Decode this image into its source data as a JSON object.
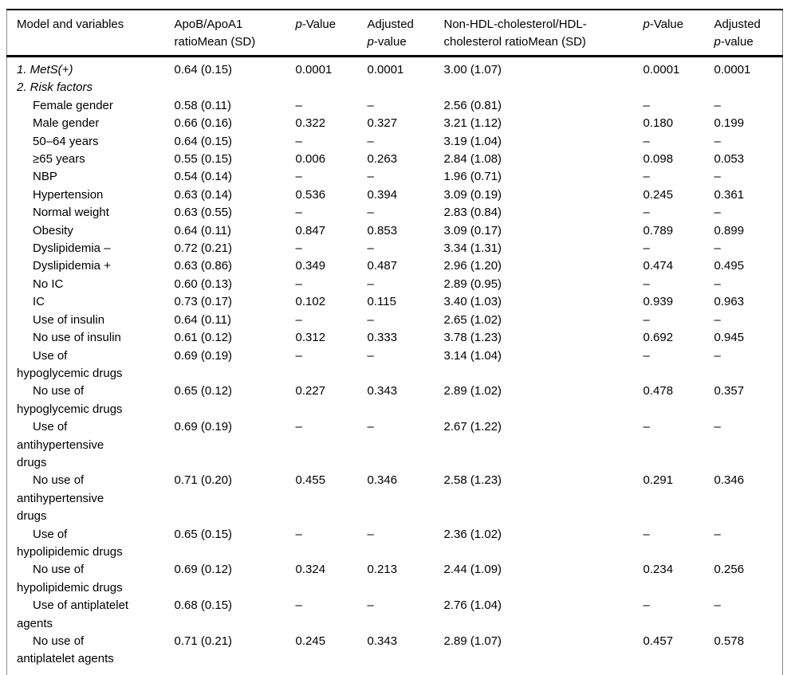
{
  "table": {
    "header": {
      "model": "Model and variables",
      "apob": "ApoB/ApoA1\nratioMean (SD)",
      "p_italic": "p",
      "p_value_rest": "-Value",
      "adjusted": "Adjusted",
      "adj_p_rest": "-value",
      "nonhdl": "Non-HDL-cholesterol/HDL-\ncholesterol ratioMean (SD)"
    },
    "missing_marker": "–",
    "rows": [
      {
        "label": "1. MetS(+)",
        "italic": true,
        "indent": false,
        "values": [
          "0.64 (0.15)",
          "0.0001",
          "0.0001",
          "3.00 (1.07)",
          "0.0001",
          "0.0001"
        ]
      },
      {
        "label": "2. Risk factors",
        "italic": true,
        "indent": false,
        "values": [
          "",
          "",
          "",
          "",
          "",
          ""
        ]
      },
      {
        "label": "Female gender",
        "italic": false,
        "indent": true,
        "values": [
          "0.58 (0.11)",
          "–",
          "–",
          "2.56 (0.81)",
          "–",
          "–"
        ]
      },
      {
        "label": "Male gender",
        "italic": false,
        "indent": true,
        "values": [
          "0.66 (0.16)",
          "0.322",
          "0.327",
          "3.21 (1.12)",
          "0.180",
          "0.199"
        ]
      },
      {
        "label": "50–64 years",
        "italic": false,
        "indent": true,
        "values": [
          "0.64 (0.15)",
          "–",
          "–",
          "3.19 (1.04)",
          "–",
          "–"
        ]
      },
      {
        "label": "≥65 years",
        "italic": false,
        "indent": true,
        "values": [
          "0.55 (0.15)",
          "0.006",
          "0.263",
          "2.84 (1.08)",
          "0.098",
          "0.053"
        ]
      },
      {
        "label": "NBP",
        "italic": false,
        "indent": true,
        "values": [
          "0.54 (0.14)",
          "–",
          "–",
          "1.96 (0.71)",
          "–",
          "–"
        ]
      },
      {
        "label": "Hypertension",
        "italic": false,
        "indent": true,
        "values": [
          "0.63 (0.14)",
          "0.536",
          "0.394",
          "3.09 (0.19)",
          "0.245",
          "0.361"
        ]
      },
      {
        "label": "Normal weight",
        "italic": false,
        "indent": true,
        "values": [
          "0.63 (0.55)",
          "–",
          "–",
          "2.83 (0.84)",
          "–",
          "–"
        ]
      },
      {
        "label": "Obesity",
        "italic": false,
        "indent": true,
        "values": [
          "0.64 (0.11)",
          "0.847",
          "0.853",
          "3.09 (0.17)",
          "0.789",
          "0.899"
        ]
      },
      {
        "label": "Dyslipidemia –",
        "italic": false,
        "indent": true,
        "values": [
          "0.72 (0.21)",
          "–",
          "–",
          "3.34 (1.31)",
          "–",
          "–"
        ]
      },
      {
        "label": "Dyslipidemia +",
        "italic": false,
        "indent": true,
        "values": [
          "0.63 (0.86)",
          "0.349",
          "0.487",
          "2.96 (1.20)",
          "0.474",
          "0.495"
        ]
      },
      {
        "label": "No IC",
        "italic": false,
        "indent": true,
        "values": [
          "0.60 (0.13)",
          "–",
          "–",
          "2.89 (0.95)",
          "–",
          "–"
        ]
      },
      {
        "label": "IC",
        "italic": false,
        "indent": true,
        "values": [
          "0.73 (0.17)",
          "0.102",
          "0.115",
          "3.40 (1.03)",
          "0.939",
          "0.963"
        ]
      },
      {
        "label": "Use of insulin",
        "italic": false,
        "indent": true,
        "values": [
          "0.64 (0.11)",
          "–",
          "–",
          "2.65 (1.02)",
          "–",
          "–"
        ]
      },
      {
        "label": "No use of insulin",
        "italic": false,
        "indent": true,
        "values": [
          "0.61 (0.12)",
          "0.312",
          "0.333",
          "3.78 (1.23)",
          "0.692",
          "0.945"
        ]
      },
      {
        "label": "Use of\nhypoglycemic drugs",
        "italic": false,
        "indent": true,
        "values": [
          "0.69 (0.19)",
          "–",
          "–",
          "3.14 (1.04)",
          "–",
          "–"
        ]
      },
      {
        "label": "No use of\nhypoglycemic drugs",
        "italic": false,
        "indent": true,
        "values": [
          "0.65 (0.12)",
          "0.227",
          "0.343",
          "2.89 (1.02)",
          "0.478",
          "0.357"
        ]
      },
      {
        "label": "Use of\nantihypertensive\ndrugs",
        "italic": false,
        "indent": true,
        "values": [
          "0.69 (0.19)",
          "–",
          "–",
          "2.67 (1.22)",
          "–",
          "–"
        ]
      },
      {
        "label": "No use of\nantihypertensive\ndrugs",
        "italic": false,
        "indent": true,
        "values": [
          "0.71 (0.20)",
          "0.455",
          "0.346",
          "2.58 (1.23)",
          "0.291",
          "0.346"
        ]
      },
      {
        "label": "Use of\nhypolipidemic drugs",
        "italic": false,
        "indent": true,
        "values": [
          "0.65 (0.15)",
          "–",
          "–",
          "2.36 (1.02)",
          "–",
          "–"
        ]
      },
      {
        "label": "No use of\nhypolipidemic drugs",
        "italic": false,
        "indent": true,
        "values": [
          "0.69 (0.12)",
          "0.324",
          "0.213",
          "2.44 (1.09)",
          "0.234",
          "0.256"
        ]
      },
      {
        "label": "Use of antiplatelet\nagents",
        "italic": false,
        "indent": true,
        "values": [
          "0.68 (0.15)",
          "–",
          "–",
          "2.76 (1.04)",
          "–",
          "–"
        ]
      },
      {
        "label": "No use of\nantiplatelet agents",
        "italic": false,
        "indent": true,
        "values": [
          "0.71 (0.21)",
          "0.245",
          "0.343",
          "2.89 (1.07)",
          "0.457",
          "0.578"
        ]
      }
    ]
  },
  "colors": {
    "text": "#000000",
    "rule_heavy": "#000000",
    "rule_side": "#8c8c8c",
    "background": "#ffffff"
  }
}
